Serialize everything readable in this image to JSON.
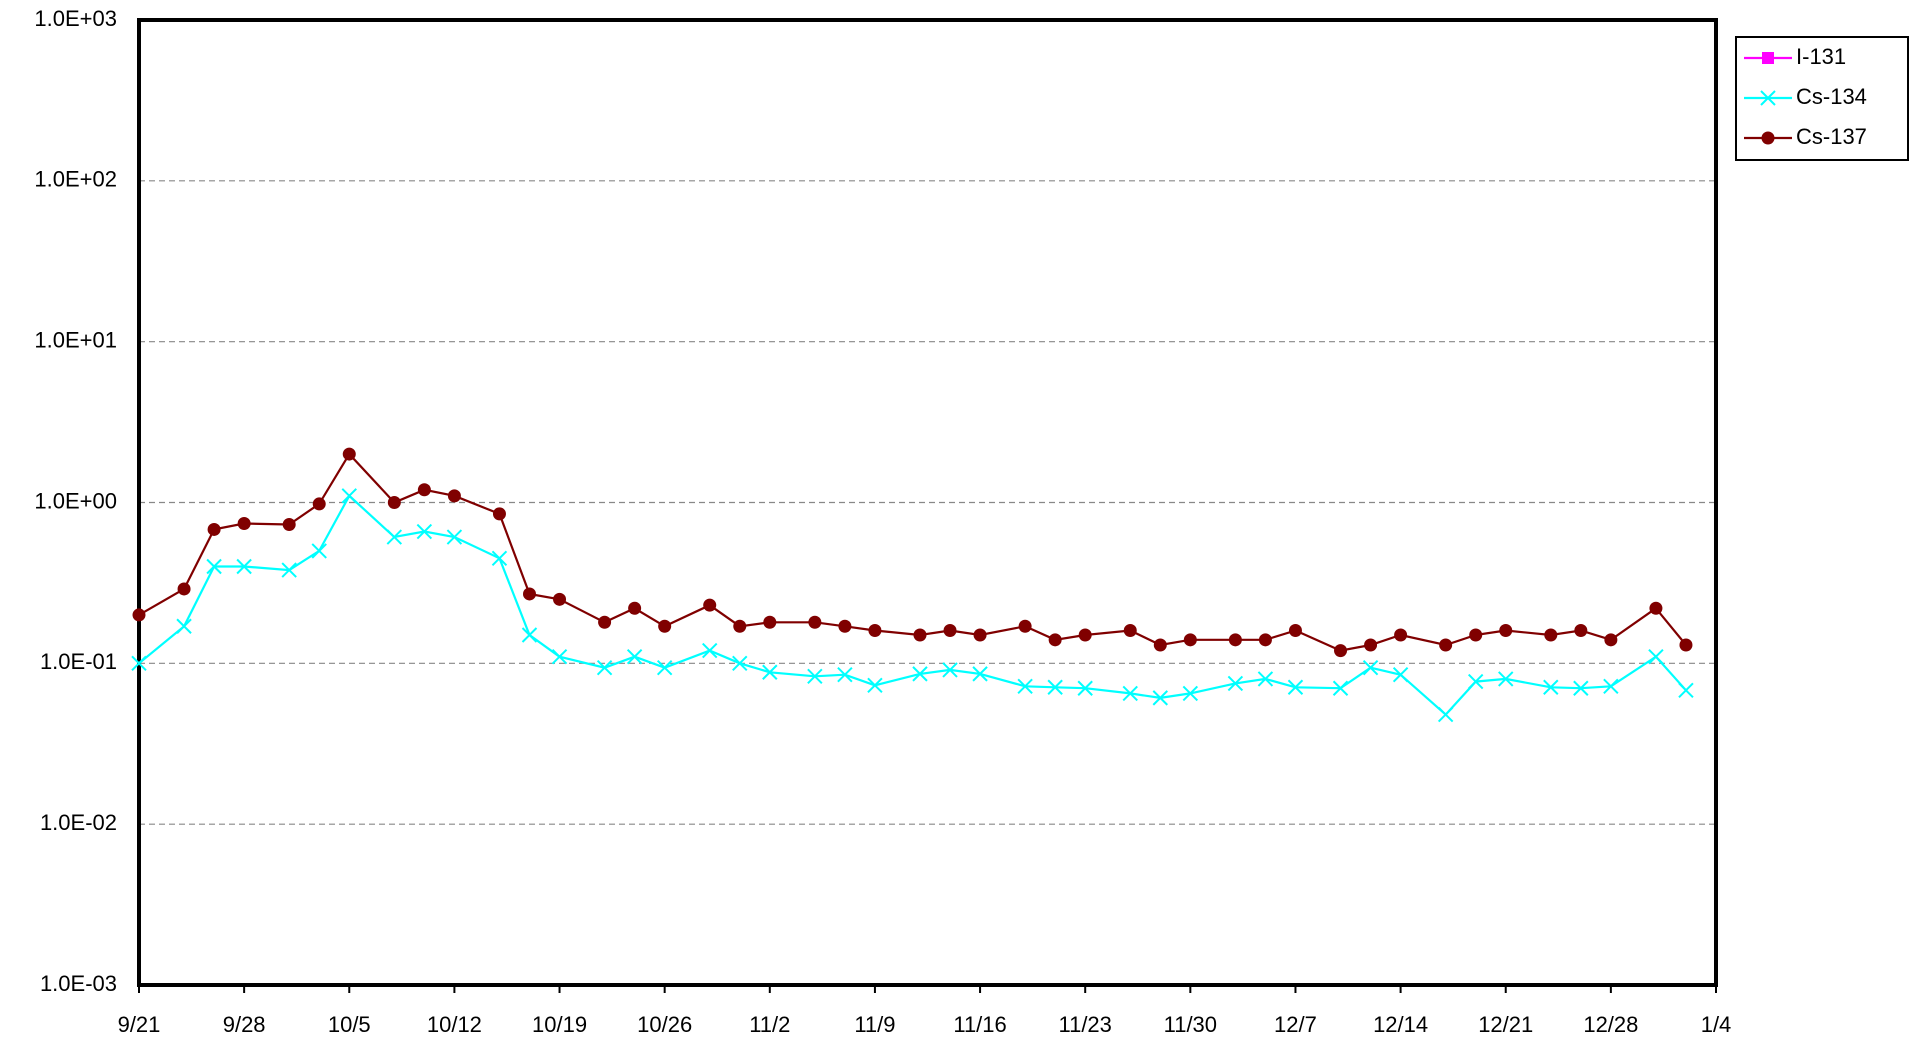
{
  "chart_data": {
    "type": "line",
    "x": [
      "9/21",
      "9/24",
      "9/26",
      "9/28",
      "10/1",
      "10/3",
      "10/5",
      "10/8",
      "10/10",
      "10/12",
      "10/15",
      "10/17",
      "10/19",
      "10/22",
      "10/24",
      "10/26",
      "10/29",
      "10/31",
      "11/2",
      "11/5",
      "11/7",
      "11/9",
      "11/12",
      "11/14",
      "11/16",
      "11/19",
      "11/21",
      "11/23",
      "11/26",
      "11/28",
      "11/30",
      "12/3",
      "12/5",
      "12/7",
      "12/10",
      "12/12",
      "12/14",
      "12/17",
      "12/19",
      "12/21",
      "12/24",
      "12/26",
      "12/28",
      "12/31",
      "1/2"
    ],
    "series": [
      {
        "name": "I-131",
        "color": "#ff00ff",
        "marker": "square",
        "values": [
          null,
          null,
          null,
          null,
          null,
          null,
          null,
          null,
          null,
          null,
          null,
          null,
          null,
          null,
          null,
          null,
          null,
          null,
          null,
          null,
          null,
          null,
          null,
          null,
          null,
          null,
          null,
          null,
          null,
          null,
          null,
          null,
          null,
          null,
          null,
          null,
          null,
          null,
          null,
          null,
          null,
          null,
          null,
          null,
          null
        ]
      },
      {
        "name": "Cs-134",
        "color": "#00ffff",
        "marker": "x",
        "values": [
          0.1,
          0.17,
          0.4,
          0.4,
          0.38,
          0.5,
          1.1,
          0.61,
          0.66,
          0.61,
          0.45,
          0.15,
          0.11,
          0.094,
          0.11,
          0.094,
          0.12,
          0.1,
          0.088,
          0.083,
          0.085,
          0.073,
          0.086,
          0.091,
          0.086,
          0.072,
          0.071,
          0.07,
          0.065,
          0.061,
          0.065,
          0.075,
          0.08,
          0.071,
          0.07,
          0.094,
          0.085,
          0.048,
          0.077,
          0.08,
          0.071,
          0.07,
          0.072,
          0.11,
          0.068
        ]
      },
      {
        "name": "Cs-137",
        "color": "#800000",
        "marker": "circle",
        "values": [
          0.2,
          0.29,
          0.68,
          0.74,
          0.73,
          0.98,
          2.0,
          1.0,
          1.2,
          1.1,
          0.85,
          0.27,
          0.25,
          0.18,
          0.22,
          0.17,
          0.23,
          0.17,
          0.18,
          0.18,
          0.17,
          0.16,
          0.15,
          0.16,
          0.15,
          0.17,
          0.14,
          0.15,
          0.16,
          0.13,
          0.14,
          0.14,
          0.14,
          0.16,
          0.12,
          0.13,
          0.15,
          0.13,
          0.15,
          0.16,
          0.15,
          0.16,
          0.14,
          0.22,
          0.13
        ]
      }
    ],
    "xlim": [
      "9/21",
      "1/4"
    ],
    "xticks": [
      "9/21",
      "9/28",
      "10/5",
      "10/12",
      "10/19",
      "10/26",
      "11/2",
      "11/9",
      "11/16",
      "11/23",
      "11/30",
      "12/7",
      "12/14",
      "12/21",
      "12/28",
      "1/4"
    ],
    "ylim": [
      0.001,
      1000
    ],
    "yscale": "log",
    "yticks": [
      {
        "value": 0.001,
        "label": "1.0E-03"
      },
      {
        "value": 0.01,
        "label": "1.0E-02"
      },
      {
        "value": 0.1,
        "label": "1.0E-01"
      },
      {
        "value": 1,
        "label": "1.0E+00"
      },
      {
        "value": 10,
        "label": "1.0E+01"
      },
      {
        "value": 100,
        "label": "1.0E+02"
      },
      {
        "value": 1000,
        "label": "1.0E+03"
      }
    ],
    "grid": true,
    "legend": "top-right"
  }
}
